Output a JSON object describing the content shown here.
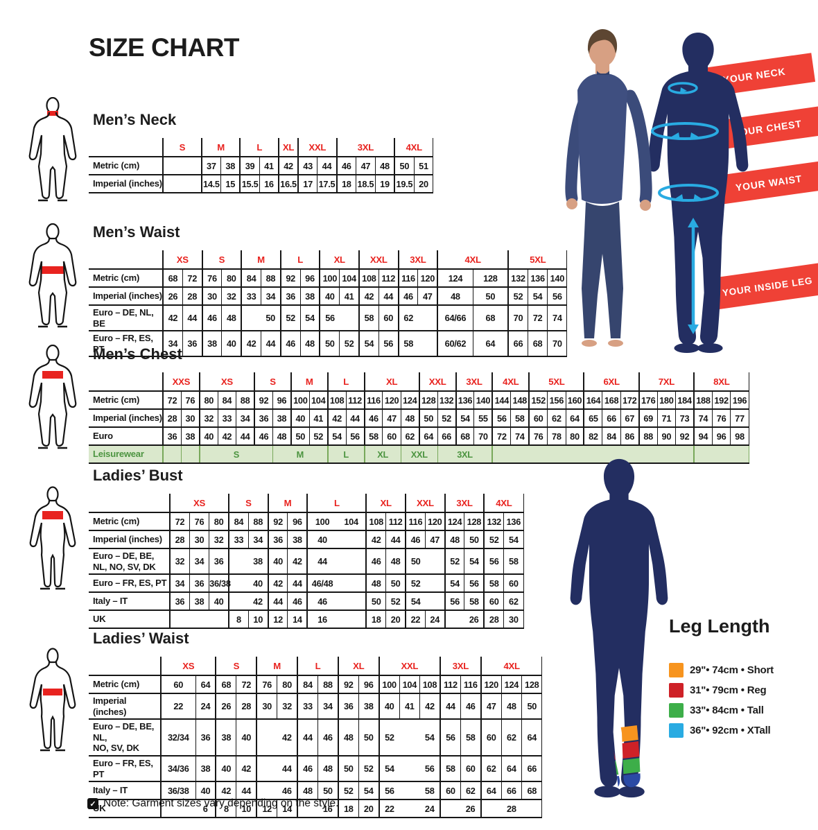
{
  "page": {
    "title": "SIZE CHART",
    "note": "Note: Garment sizes vary depending on the style.",
    "note_icon": "✓"
  },
  "colors": {
    "red": "#e8231f",
    "banner_red": "#ef4136",
    "navy": "#232e61",
    "cyan": "#29abe2",
    "green_text": "#4c9440",
    "green_bg": "#dae8cc",
    "green_line": "#78a85a"
  },
  "diagram": {
    "banners": [
      "YOUR NECK",
      "YOUR CHEST",
      "YOUR WAIST",
      "YOUR INSIDE LEG"
    ]
  },
  "leg_length": {
    "title": "Leg Length",
    "items": [
      {
        "color": "#f7941e",
        "label": "29\"• 74cm • Short"
      },
      {
        "color": "#ce2127",
        "label": "31\"• 79cm • Reg"
      },
      {
        "color": "#3dae49",
        "label": "33\"• 84cm • Tall"
      },
      {
        "color": "#29abe2",
        "label": "36\"• 92cm • XTall"
      }
    ]
  },
  "tables": [
    {
      "id": "mens-neck",
      "title": "Men’s Neck",
      "cols": [
        2,
        1,
        1,
        1,
        1,
        1,
        1,
        1,
        1,
        1,
        1,
        1,
        1
      ],
      "sizes": [
        {
          "t": "S",
          "s": 1
        },
        {
          "t": "M",
          "s": 2
        },
        {
          "t": "L",
          "s": 2
        },
        {
          "t": "XL",
          "s": 1
        },
        {
          "t": "XXL",
          "s": 2
        },
        {
          "t": "3XL",
          "s": 3
        },
        {
          "t": "4XL",
          "s": 2
        }
      ],
      "rows": [
        {
          "label": "Metric (cm)",
          "cells": [
            "",
            "37",
            "38",
            "39",
            "41",
            "42",
            "43",
            "44",
            "46",
            "47",
            "48",
            "50",
            "51"
          ]
        },
        {
          "label": "Imperial (inches)",
          "cells": [
            "",
            "14.5",
            "15",
            "15.5",
            "16",
            "16.5",
            "17",
            "17.5",
            "18",
            "18.5",
            "19",
            "19.5",
            "20"
          ]
        }
      ]
    },
    {
      "id": "mens-waist",
      "title": "Men’s Waist",
      "cols": [
        1,
        1,
        1,
        1,
        1,
        1,
        1,
        1,
        1,
        1,
        1,
        1,
        1,
        1,
        1.8,
        1.8,
        1,
        1,
        1
      ],
      "sizes": [
        {
          "t": "XS",
          "s": 2
        },
        {
          "t": "S",
          "s": 2
        },
        {
          "t": "M",
          "s": 2
        },
        {
          "t": "L",
          "s": 2
        },
        {
          "t": "XL",
          "s": 2
        },
        {
          "t": "XXL",
          "s": 2
        },
        {
          "t": "3XL",
          "s": 2
        },
        {
          "t": "4XL",
          "s": 2
        },
        {
          "t": "5XL",
          "s": 3
        }
      ],
      "rows": [
        {
          "label": "Metric (cm)",
          "cells": [
            "68",
            "72",
            "76",
            "80",
            "84",
            "88",
            "92",
            "96",
            "100",
            "104",
            "108",
            "112",
            "116",
            "120",
            "124",
            "128",
            "132",
            "136",
            "140"
          ]
        },
        {
          "label": "Imperial (inches)",
          "cells": [
            "26",
            "28",
            "30",
            "32",
            "33",
            "34",
            "36",
            "38",
            "40",
            "41",
            "42",
            "44",
            "46",
            "47",
            "48",
            "50",
            "52",
            "54",
            "56"
          ]
        },
        {
          "label": "Euro – DE, NL, BE",
          "cells": [
            "42",
            "44",
            "46",
            "48",
            "",
            {
              "t": "50",
              "nlb": true
            },
            "52",
            "54",
            "56",
            {
              "t": "",
              "nlb": true
            },
            "58",
            "60",
            "62",
            {
              "t": "",
              "nlb": true
            },
            "64/66",
            "68",
            "70",
            "72",
            "74"
          ]
        },
        {
          "label": "Euro – FR, ES, PT",
          "cells": [
            "34",
            "36",
            "38",
            "40",
            "42",
            "44",
            "46",
            "48",
            "50",
            "52",
            "54",
            "56",
            "58",
            {
              "t": "",
              "nlb": true
            },
            "60/62",
            "64",
            "66",
            "68",
            "70"
          ]
        }
      ]
    },
    {
      "id": "mens-chest",
      "title": "Men’s Chest",
      "cols": [
        1,
        1,
        1,
        1,
        1,
        1,
        1,
        1,
        1,
        1,
        1,
        1,
        1,
        1,
        1,
        1,
        1,
        1,
        1,
        1,
        1,
        1,
        1,
        1,
        1,
        1,
        1,
        1,
        1,
        1,
        1,
        1
      ],
      "sizes": [
        {
          "t": "XXS",
          "s": 2
        },
        {
          "t": "XS",
          "s": 3
        },
        {
          "t": "S",
          "s": 2
        },
        {
          "t": "M",
          "s": 2
        },
        {
          "t": "L",
          "s": 2
        },
        {
          "t": "XL",
          "s": 3
        },
        {
          "t": "XXL",
          "s": 2
        },
        {
          "t": "3XL",
          "s": 2
        },
        {
          "t": "4XL",
          "s": 2
        },
        {
          "t": "5XL",
          "s": 3
        },
        {
          "t": "6XL",
          "s": 3
        },
        {
          "t": "7XL",
          "s": 3
        },
        {
          "t": "8XL",
          "s": 3
        }
      ],
      "rows": [
        {
          "label": "Metric (cm)",
          "cells": [
            "72",
            "76",
            "80",
            "84",
            "88",
            "92",
            "96",
            "100",
            "104",
            "108",
            "112",
            "116",
            "120",
            "124",
            "128",
            "132",
            "136",
            "140",
            "144",
            "148",
            "152",
            "156",
            "160",
            "164",
            "168",
            "172",
            "176",
            "180",
            "184",
            "188",
            "192",
            "196"
          ]
        },
        {
          "label": "Imperial (inches)",
          "cells": [
            "28",
            "30",
            "32",
            "33",
            "34",
            "36",
            "38",
            "40",
            "41",
            "42",
            "44",
            "46",
            "47",
            "48",
            "50",
            "52",
            "54",
            "55",
            "56",
            "58",
            "60",
            "62",
            "64",
            "65",
            "66",
            "67",
            "69",
            "71",
            "73",
            "74",
            "76",
            "77"
          ]
        },
        {
          "label": "Euro",
          "cells": [
            "36",
            "38",
            "40",
            "42",
            "44",
            "46",
            "48",
            "50",
            "52",
            "54",
            "56",
            "58",
            "60",
            "62",
            "64",
            "66",
            "68",
            "70",
            "72",
            "74",
            "76",
            "78",
            "80",
            "82",
            "84",
            "86",
            "88",
            "90",
            "92",
            "94",
            "96",
            "98"
          ]
        },
        {
          "label": "Leisurewear",
          "type": "leisure",
          "cells": [
            "",
            "",
            {
              "t": "S",
              "s": 4
            },
            {
              "t": "M",
              "s": 3
            },
            {
              "t": "L",
              "s": 2
            },
            {
              "t": "XL",
              "s": 2
            },
            {
              "t": "XXL",
              "s": 2
            },
            {
              "t": "3XL",
              "s": 3
            },
            {
              "t": "",
              "s": 11
            },
            {
              "t": "",
              "s": 3
            }
          ]
        }
      ]
    },
    {
      "id": "ladies-bust",
      "title": "Ladies’ Bust",
      "cols": [
        1,
        1,
        1,
        1,
        1,
        1,
        1,
        1.5,
        1.5,
        1,
        1,
        1,
        1,
        1,
        1,
        1,
        1
      ],
      "sizes": [
        {
          "t": "XS",
          "s": 3
        },
        {
          "t": "S",
          "s": 2
        },
        {
          "t": "M",
          "s": 2
        },
        {
          "t": "L",
          "s": 2
        },
        {
          "t": "XL",
          "s": 2
        },
        {
          "t": "XXL",
          "s": 2
        },
        {
          "t": "3XL",
          "s": 2
        },
        {
          "t": "4XL",
          "s": 2
        }
      ],
      "rows": [
        {
          "label": "Metric (cm)",
          "cells": [
            "72",
            "76",
            "80",
            "84",
            "88",
            "92",
            "96",
            "100",
            {
              "t": "104",
              "nlb": true
            },
            "108",
            "112",
            "116",
            "120",
            "124",
            "128",
            "132",
            "136"
          ]
        },
        {
          "label": "Imperial (inches)",
          "cells": [
            "28",
            "30",
            "32",
            "33",
            "34",
            "36",
            "38",
            "40",
            {
              "t": "",
              "nlb": true
            },
            "42",
            "44",
            "46",
            "47",
            "48",
            "50",
            "52",
            "54"
          ]
        },
        {
          "label": "Euro –  DE, BE,\nNL, NO, SV, DK",
          "cells": [
            "32",
            "34",
            "36",
            "",
            {
              "t": "38",
              "nlb": true
            },
            "40",
            "42",
            "44",
            {
              "t": "",
              "nlb": true
            },
            "46",
            "48",
            "50",
            {
              "t": "",
              "nlb": true
            },
            "52",
            "54",
            "56",
            "58"
          ]
        },
        {
          "label": "Euro – FR, ES, PT",
          "cells": [
            "34",
            "36",
            "36/38",
            "",
            {
              "t": "40",
              "nlb": true
            },
            "42",
            "44",
            "46/48",
            {
              "t": "",
              "nlb": true
            },
            "48",
            "50",
            "52",
            {
              "t": "",
              "nlb": true
            },
            "54",
            "56",
            "58",
            "60"
          ]
        },
        {
          "label": "Italy – IT",
          "cells": [
            "36",
            "38",
            "40",
            "",
            {
              "t": "42",
              "nlb": true
            },
            "44",
            "46",
            "46",
            {
              "t": "",
              "nlb": true
            },
            "50",
            "52",
            "54",
            {
              "t": "",
              "nlb": true
            },
            "56",
            "58",
            "60",
            "62"
          ]
        },
        {
          "label": "UK",
          "cells": [
            "",
            {
              "t": "",
              "nlb": true
            },
            {
              "t": "",
              "nlb": true
            },
            "8",
            "10",
            "12",
            "14",
            "16",
            {
              "t": "",
              "nlb": true
            },
            "18",
            "20",
            "22",
            "24",
            "",
            {
              "t": "26",
              "nlb": true
            },
            "28",
            "30"
          ]
        }
      ]
    },
    {
      "id": "ladies-waist",
      "title": "Ladies’ Waist",
      "cols": [
        1.7,
        1,
        1,
        1,
        1,
        1,
        1,
        1,
        1,
        1,
        1,
        1,
        1,
        1,
        1,
        1,
        1,
        1
      ],
      "sizes": [
        {
          "t": "XS",
          "s": 2
        },
        {
          "t": "S",
          "s": 2
        },
        {
          "t": "M",
          "s": 2
        },
        {
          "t": "L",
          "s": 2
        },
        {
          "t": "XL",
          "s": 2
        },
        {
          "t": "XXL",
          "s": 3
        },
        {
          "t": "3XL",
          "s": 2
        },
        {
          "t": "4XL",
          "s": 3
        }
      ],
      "rows": [
        {
          "label": "Metric (cm)",
          "cells": [
            "60",
            "64",
            "68",
            "72",
            "76",
            "80",
            "84",
            "88",
            "92",
            "96",
            "100",
            "104",
            "108",
            "112",
            "116",
            "120",
            "124",
            "128"
          ]
        },
        {
          "label": "Imperial (inches)",
          "cells": [
            "22",
            "24",
            "26",
            "28",
            "30",
            "32",
            "33",
            "34",
            "36",
            "38",
            "40",
            "41",
            "42",
            "44",
            "46",
            "47",
            "48",
            "50"
          ]
        },
        {
          "label": "Euro – DE, BE, NL,\nNO, SV, DK",
          "cells": [
            "32/34",
            "36",
            "38",
            "40",
            "",
            {
              "t": "42",
              "nlb": true
            },
            "44",
            "46",
            "48",
            "50",
            "52",
            {
              "t": "",
              "nlb": true
            },
            {
              "t": "54",
              "nlb": true
            },
            "56",
            "58",
            "60",
            "62",
            "64"
          ]
        },
        {
          "label": "Euro – FR, ES, PT",
          "cells": [
            "34/36",
            "38",
            "40",
            "42",
            "",
            {
              "t": "44",
              "nlb": true
            },
            "46",
            "48",
            "50",
            "52",
            "54",
            {
              "t": "",
              "nlb": true
            },
            {
              "t": "56",
              "nlb": true
            },
            "58",
            "60",
            "62",
            "64",
            "66"
          ]
        },
        {
          "label": "Italy – IT",
          "cells": [
            "36/38",
            "40",
            "42",
            "44",
            "",
            {
              "t": "46",
              "nlb": true
            },
            "48",
            "50",
            "52",
            "54",
            "56",
            {
              "t": "",
              "nlb": true
            },
            {
              "t": "58",
              "nlb": true
            },
            "60",
            "62",
            "64",
            "66",
            "68"
          ]
        },
        {
          "label": "UK",
          "cells": [
            "",
            {
              "t": "6",
              "nlb": true
            },
            "8",
            "10",
            "12",
            "14",
            "",
            {
              "t": "16",
              "nlb": true
            },
            "18",
            "20",
            "22",
            {
              "t": "",
              "nlb": true
            },
            {
              "t": "24",
              "nlb": true
            },
            "",
            {
              "t": "26",
              "nlb": true
            },
            "",
            {
              "t": "28",
              "nlb": true
            },
            {
              "t": "",
              "nlb": true
            }
          ]
        }
      ]
    }
  ]
}
